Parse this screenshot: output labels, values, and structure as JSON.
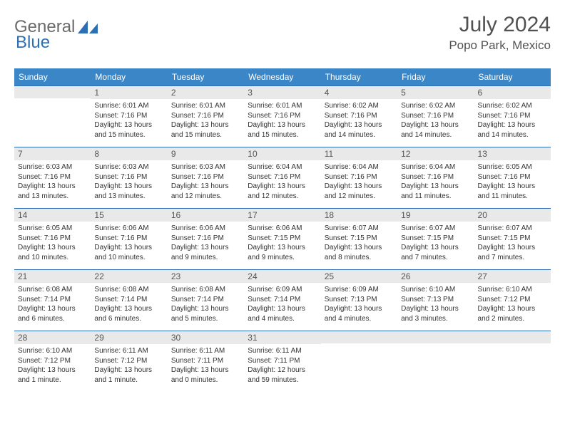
{
  "logo": {
    "general": "General",
    "blue": "Blue",
    "shape_color": "#2c6fb5"
  },
  "title": {
    "month": "July 2024",
    "location": "Popo Park, Mexico"
  },
  "colors": {
    "header_bg": "#3b86c6",
    "header_text": "#ffffff",
    "daynum_bg": "#e9e9e9",
    "border": "#2c6fb5",
    "body_text": "#333333",
    "title_text": "#525252"
  },
  "weekdays": [
    "Sunday",
    "Monday",
    "Tuesday",
    "Wednesday",
    "Thursday",
    "Friday",
    "Saturday"
  ],
  "weeks": [
    [
      null,
      {
        "n": "1",
        "sr": "6:01 AM",
        "ss": "7:16 PM",
        "dl": "13 hours and 15 minutes."
      },
      {
        "n": "2",
        "sr": "6:01 AM",
        "ss": "7:16 PM",
        "dl": "13 hours and 15 minutes."
      },
      {
        "n": "3",
        "sr": "6:01 AM",
        "ss": "7:16 PM",
        "dl": "13 hours and 15 minutes."
      },
      {
        "n": "4",
        "sr": "6:02 AM",
        "ss": "7:16 PM",
        "dl": "13 hours and 14 minutes."
      },
      {
        "n": "5",
        "sr": "6:02 AM",
        "ss": "7:16 PM",
        "dl": "13 hours and 14 minutes."
      },
      {
        "n": "6",
        "sr": "6:02 AM",
        "ss": "7:16 PM",
        "dl": "13 hours and 14 minutes."
      }
    ],
    [
      {
        "n": "7",
        "sr": "6:03 AM",
        "ss": "7:16 PM",
        "dl": "13 hours and 13 minutes."
      },
      {
        "n": "8",
        "sr": "6:03 AM",
        "ss": "7:16 PM",
        "dl": "13 hours and 13 minutes."
      },
      {
        "n": "9",
        "sr": "6:03 AM",
        "ss": "7:16 PM",
        "dl": "13 hours and 12 minutes."
      },
      {
        "n": "10",
        "sr": "6:04 AM",
        "ss": "7:16 PM",
        "dl": "13 hours and 12 minutes."
      },
      {
        "n": "11",
        "sr": "6:04 AM",
        "ss": "7:16 PM",
        "dl": "13 hours and 12 minutes."
      },
      {
        "n": "12",
        "sr": "6:04 AM",
        "ss": "7:16 PM",
        "dl": "13 hours and 11 minutes."
      },
      {
        "n": "13",
        "sr": "6:05 AM",
        "ss": "7:16 PM",
        "dl": "13 hours and 11 minutes."
      }
    ],
    [
      {
        "n": "14",
        "sr": "6:05 AM",
        "ss": "7:16 PM",
        "dl": "13 hours and 10 minutes."
      },
      {
        "n": "15",
        "sr": "6:06 AM",
        "ss": "7:16 PM",
        "dl": "13 hours and 10 minutes."
      },
      {
        "n": "16",
        "sr": "6:06 AM",
        "ss": "7:16 PM",
        "dl": "13 hours and 9 minutes."
      },
      {
        "n": "17",
        "sr": "6:06 AM",
        "ss": "7:15 PM",
        "dl": "13 hours and 9 minutes."
      },
      {
        "n": "18",
        "sr": "6:07 AM",
        "ss": "7:15 PM",
        "dl": "13 hours and 8 minutes."
      },
      {
        "n": "19",
        "sr": "6:07 AM",
        "ss": "7:15 PM",
        "dl": "13 hours and 7 minutes."
      },
      {
        "n": "20",
        "sr": "6:07 AM",
        "ss": "7:15 PM",
        "dl": "13 hours and 7 minutes."
      }
    ],
    [
      {
        "n": "21",
        "sr": "6:08 AM",
        "ss": "7:14 PM",
        "dl": "13 hours and 6 minutes."
      },
      {
        "n": "22",
        "sr": "6:08 AM",
        "ss": "7:14 PM",
        "dl": "13 hours and 6 minutes."
      },
      {
        "n": "23",
        "sr": "6:08 AM",
        "ss": "7:14 PM",
        "dl": "13 hours and 5 minutes."
      },
      {
        "n": "24",
        "sr": "6:09 AM",
        "ss": "7:14 PM",
        "dl": "13 hours and 4 minutes."
      },
      {
        "n": "25",
        "sr": "6:09 AM",
        "ss": "7:13 PM",
        "dl": "13 hours and 4 minutes."
      },
      {
        "n": "26",
        "sr": "6:10 AM",
        "ss": "7:13 PM",
        "dl": "13 hours and 3 minutes."
      },
      {
        "n": "27",
        "sr": "6:10 AM",
        "ss": "7:12 PM",
        "dl": "13 hours and 2 minutes."
      }
    ],
    [
      {
        "n": "28",
        "sr": "6:10 AM",
        "ss": "7:12 PM",
        "dl": "13 hours and 1 minute."
      },
      {
        "n": "29",
        "sr": "6:11 AM",
        "ss": "7:12 PM",
        "dl": "13 hours and 1 minute."
      },
      {
        "n": "30",
        "sr": "6:11 AM",
        "ss": "7:11 PM",
        "dl": "13 hours and 0 minutes."
      },
      {
        "n": "31",
        "sr": "6:11 AM",
        "ss": "7:11 PM",
        "dl": "12 hours and 59 minutes."
      },
      null,
      null,
      null
    ]
  ],
  "labels": {
    "sunrise": "Sunrise:",
    "sunset": "Sunset:",
    "daylight": "Daylight:"
  }
}
